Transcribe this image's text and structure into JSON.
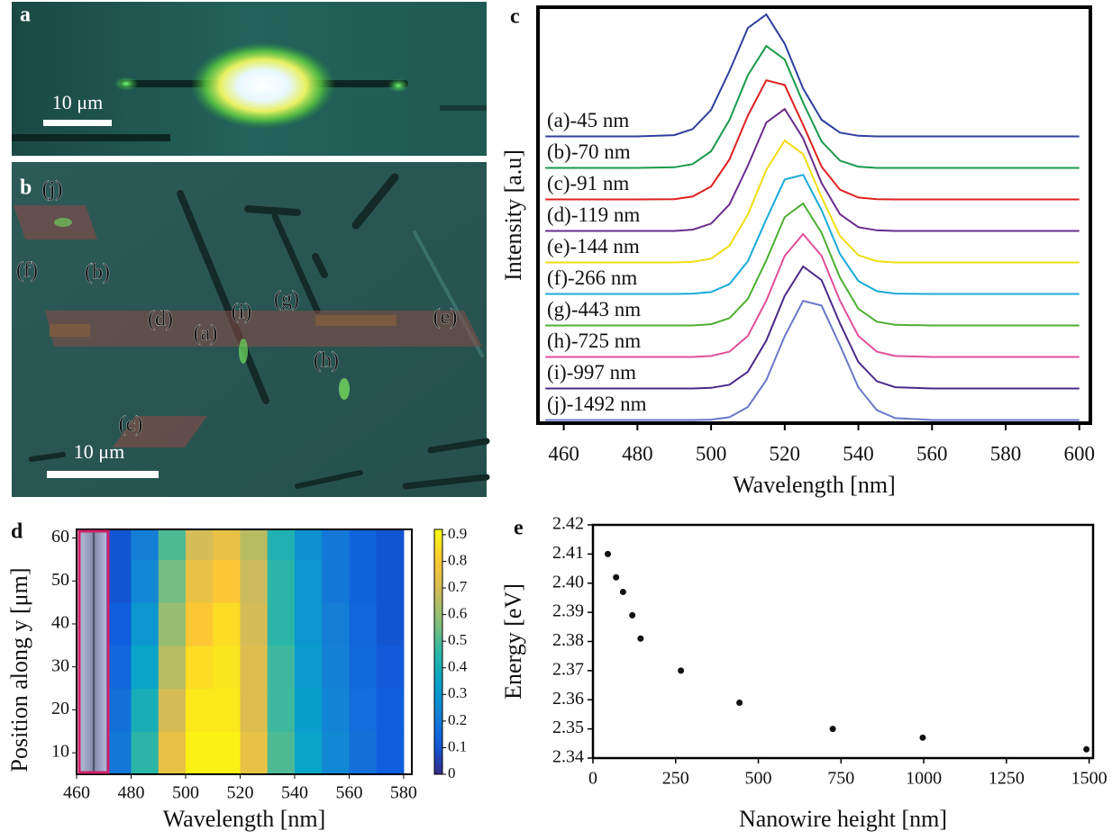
{
  "images": [
    {
      "label": "a",
      "scale_bar": "10 μm"
    },
    {
      "label": "b",
      "scale_bar": "10 μm",
      "markers": [
        {
          "text": "(j)",
          "color": "#8a8ad0"
        },
        {
          "text": "(f)",
          "color": "#2aa6dc"
        },
        {
          "text": "(b)",
          "color": "#3fa062"
        },
        {
          "text": "(d)",
          "color": "#b044b8"
        },
        {
          "text": "(a)",
          "color": "#5563c8"
        },
        {
          "text": "(i)",
          "color": "#6a55bb"
        },
        {
          "text": "(g)",
          "color": "#55b050"
        },
        {
          "text": "(e)",
          "color": "#f2d230"
        },
        {
          "text": "(h)",
          "color": "#e060a8"
        },
        {
          "text": "(c)",
          "color": "#e23030"
        }
      ]
    }
  ],
  "chart_data": [
    {
      "type": "line",
      "panel_label": "c",
      "xlabel": "Wavelength [nm]",
      "ylabel": "Intensity [a.u]",
      "x": [
        455,
        470,
        480,
        490,
        495,
        500,
        505,
        510,
        515,
        520,
        525,
        530,
        535,
        540,
        545,
        550,
        560,
        580,
        600
      ],
      "series": [
        {
          "name": "(a)-45 nm",
          "color": "#2e3f9e",
          "values": [
            9,
            9,
            9,
            9.04,
            9.23,
            9.84,
            11.07,
            12.44,
            12.87,
            11.94,
            10.52,
            9.53,
            9.12,
            9.02,
            9,
            9,
            9,
            9,
            9
          ]
        },
        {
          "name": "(b)-70 nm",
          "color": "#1a9a4a",
          "values": [
            8,
            8,
            8,
            8.02,
            8.12,
            8.53,
            9.52,
            10.94,
            11.87,
            11.44,
            10.07,
            8.84,
            8.23,
            8.04,
            8,
            8,
            8,
            8,
            8
          ]
        },
        {
          "name": "(c)-91 nm",
          "color": "#e02020",
          "values": [
            7,
            7,
            7,
            7.01,
            7.09,
            7.41,
            8.27,
            9.66,
            10.78,
            10.63,
            9.37,
            8.04,
            7.31,
            7.06,
            7.01,
            7,
            7,
            7,
            7
          ]
        },
        {
          "name": "(d)-119 nm",
          "color": "#6a2c8c",
          "values": [
            6,
            6,
            6,
            6,
            6.04,
            6.23,
            6.84,
            8.07,
            9.44,
            9.87,
            8.94,
            7.52,
            6.53,
            6.12,
            6.02,
            6,
            6,
            6,
            6
          ]
        },
        {
          "name": "(e)-144 nm",
          "color": "#f0dc10",
          "values": [
            5,
            5,
            5,
            5,
            5.02,
            5.12,
            5.53,
            6.52,
            7.94,
            8.87,
            8.44,
            7.07,
            5.84,
            5.23,
            5.04,
            5,
            5,
            5,
            5
          ]
        },
        {
          "name": "(f)-266 nm",
          "color": "#1aaad8",
          "values": [
            4,
            4,
            4,
            4,
            4.01,
            4.06,
            4.31,
            5.04,
            6.37,
            7.63,
            7.78,
            6.66,
            5.27,
            4.41,
            4.09,
            4.01,
            4,
            4,
            4
          ]
        },
        {
          "name": "(g)-443 nm",
          "color": "#4caf32",
          "values": [
            3,
            3,
            3,
            3,
            3,
            3.04,
            3.23,
            3.84,
            5.07,
            6.44,
            6.87,
            5.94,
            4.52,
            3.53,
            3.12,
            3.02,
            3,
            3,
            3
          ]
        },
        {
          "name": "(h)-725 nm",
          "color": "#e0509a",
          "values": [
            2,
            2,
            2,
            2,
            2,
            2.03,
            2.17,
            2.67,
            3.79,
            5.21,
            5.9,
            5.21,
            3.79,
            2.67,
            2.17,
            2.03,
            2,
            2,
            2
          ]
        },
        {
          "name": "(i)-997 nm",
          "color": "#4b2a8a",
          "values": [
            1,
            1,
            1,
            1,
            1,
            1.02,
            1.12,
            1.53,
            2.52,
            3.94,
            4.87,
            4.44,
            3.07,
            1.84,
            1.23,
            1.04,
            1,
            1,
            1
          ]
        },
        {
          "name": "(j)-1492 nm",
          "color": "#6a78c8",
          "values": [
            0,
            0,
            0,
            0,
            0,
            0.01,
            0.09,
            0.41,
            1.27,
            2.66,
            3.78,
            3.63,
            2.37,
            1.04,
            0.31,
            0.06,
            0,
            0,
            0
          ]
        }
      ],
      "xlim": [
        453,
        603
      ],
      "xticks": [
        460,
        480,
        500,
        520,
        540,
        560,
        580,
        600
      ],
      "ylim": [
        -0.1,
        13.1
      ]
    },
    {
      "type": "heatmap",
      "panel_label": "d",
      "xlabel": "Wavelength [nm]",
      "ylabel": "Position along y [μm]",
      "xbins": [
        471,
        480,
        490,
        500,
        510,
        520,
        530,
        540,
        550,
        560,
        570,
        580
      ],
      "ybins": [
        5,
        15,
        25,
        35,
        45,
        55,
        62
      ],
      "z": [
        [
          0.2,
          0.45,
          0.75,
          0.9,
          0.9,
          0.75,
          0.5,
          0.35,
          0.25,
          0.18,
          0.12
        ],
        [
          0.18,
          0.4,
          0.7,
          0.88,
          0.88,
          0.72,
          0.48,
          0.33,
          0.24,
          0.17,
          0.12
        ],
        [
          0.15,
          0.35,
          0.65,
          0.85,
          0.87,
          0.72,
          0.48,
          0.32,
          0.23,
          0.16,
          0.11
        ],
        [
          0.12,
          0.3,
          0.6,
          0.8,
          0.85,
          0.7,
          0.45,
          0.3,
          0.22,
          0.15,
          0.1
        ],
        [
          0.1,
          0.25,
          0.55,
          0.75,
          0.8,
          0.68,
          0.45,
          0.3,
          0.2,
          0.14,
          0.1
        ],
        [
          0.1,
          0.22,
          0.5,
          0.7,
          0.75,
          0.65,
          0.42,
          0.28,
          0.2,
          0.14,
          0.1
        ]
      ],
      "xlim": [
        460,
        583
      ],
      "xticks": [
        460,
        480,
        500,
        520,
        540,
        560,
        580
      ],
      "ylim": [
        5,
        62
      ],
      "yticks": [
        10,
        20,
        30,
        40,
        50,
        60
      ],
      "clim": [
        0,
        0.92
      ],
      "cticks": [
        0,
        0.1,
        0.2,
        0.3,
        0.4,
        0.5,
        0.6,
        0.7,
        0.8,
        0.9
      ],
      "colormap": "parula"
    },
    {
      "type": "scatter",
      "panel_label": "e",
      "xlabel": "Nanowire height [nm]",
      "ylabel": "Energy [eV]",
      "x": [
        45,
        70,
        91,
        119,
        144,
        266,
        443,
        725,
        997,
        1492
      ],
      "y": [
        2.41,
        2.402,
        2.397,
        2.389,
        2.381,
        2.37,
        2.359,
        2.35,
        2.347,
        2.343
      ],
      "color": "#111111",
      "xlim": [
        0,
        1512
      ],
      "xticks": [
        0,
        250,
        500,
        750,
        1000,
        1250,
        1500
      ],
      "ylim": [
        2.34,
        2.42
      ],
      "yticks": [
        2.34,
        2.35,
        2.36,
        2.37,
        2.38,
        2.39,
        {
          "value": 2.4,
          "label": "2.40"
        },
        2.41,
        2.42
      ]
    }
  ]
}
